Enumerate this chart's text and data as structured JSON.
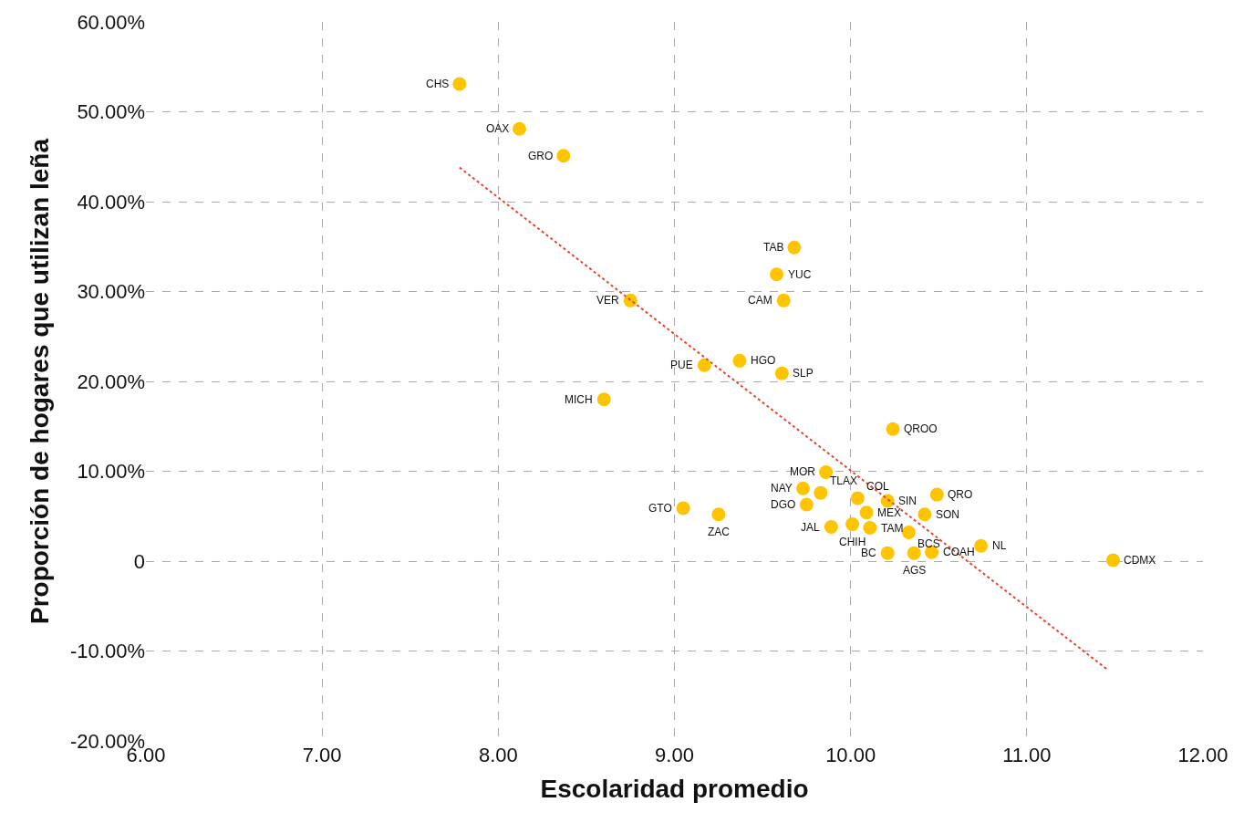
{
  "chart_data": {
    "type": "scatter",
    "xlabel": "Escolaridad promedio",
    "ylabel": "Proporción de hogares que utilizan leña",
    "series": [
      {
        "color": "#ffc400",
        "marker": "circle",
        "x": [
          7.78,
          8.12,
          8.37,
          9.68,
          9.58,
          9.62,
          8.75,
          9.17,
          9.37,
          9.61,
          8.6,
          10.24,
          9.05,
          9.25,
          9.86,
          9.73,
          9.83,
          9.75,
          10.04,
          10.21,
          10.49,
          10.09,
          10.42,
          9.89,
          10.01,
          10.11,
          10.33,
          10.21,
          10.36,
          10.46,
          10.74,
          11.49
        ],
        "values": [
          53.1,
          48.1,
          45.1,
          34.9,
          31.9,
          29.0,
          29.0,
          21.8,
          22.3,
          20.9,
          18.0,
          14.7,
          5.9,
          5.2,
          9.9,
          8.1,
          7.6,
          6.3,
          7.0,
          6.7,
          7.4,
          5.4,
          5.2,
          3.8,
          4.1,
          3.7,
          3.2,
          0.9,
          0.9,
          1.0,
          1.7,
          0.1
        ]
      },
      {
        "type": "line",
        "color": "#e8412c",
        "line_style": "dotted",
        "x": [
          7.78,
          11.46
        ],
        "values": [
          43.8,
          -12.1
        ]
      }
    ],
    "annotations": [
      {
        "text": "CHS",
        "x": 7.78,
        "y": 53.1
      },
      {
        "text": "OAX",
        "x": 8.12,
        "y": 48.1
      },
      {
        "text": "GRO",
        "x": 8.37,
        "y": 45.1
      },
      {
        "text": "TAB",
        "x": 9.68,
        "y": 34.9
      },
      {
        "text": "YUC",
        "x": 9.58,
        "y": 31.9
      },
      {
        "text": "CAM",
        "x": 9.62,
        "y": 29.0
      },
      {
        "text": "VER",
        "x": 8.75,
        "y": 29.0
      },
      {
        "text": "PUE",
        "x": 9.17,
        "y": 21.8
      },
      {
        "text": "HGO",
        "x": 9.37,
        "y": 22.3
      },
      {
        "text": "SLP",
        "x": 9.61,
        "y": 20.9
      },
      {
        "text": "MICH",
        "x": 8.6,
        "y": 18.0
      },
      {
        "text": "QROO",
        "x": 10.24,
        "y": 14.7
      },
      {
        "text": "GTO",
        "x": 9.05,
        "y": 5.9
      },
      {
        "text": "ZAC",
        "x": 9.25,
        "y": 5.2
      },
      {
        "text": "MOR",
        "x": 9.86,
        "y": 9.9
      },
      {
        "text": "NAY",
        "x": 9.73,
        "y": 8.1
      },
      {
        "text": "TLAX",
        "x": 9.83,
        "y": 7.6
      },
      {
        "text": "DGO",
        "x": 9.75,
        "y": 6.3
      },
      {
        "text": "COL",
        "x": 10.04,
        "y": 7.0
      },
      {
        "text": "SIN",
        "x": 10.21,
        "y": 6.7
      },
      {
        "text": "QRO",
        "x": 10.49,
        "y": 7.4
      },
      {
        "text": "MEX",
        "x": 10.09,
        "y": 5.4
      },
      {
        "text": "SON",
        "x": 10.42,
        "y": 5.2
      },
      {
        "text": "JAL",
        "x": 9.89,
        "y": 3.8
      },
      {
        "text": "CHIH",
        "x": 10.01,
        "y": 4.1
      },
      {
        "text": "TAM",
        "x": 10.11,
        "y": 3.7
      },
      {
        "text": "BCS",
        "x": 10.33,
        "y": 3.2
      },
      {
        "text": "BC",
        "x": 10.21,
        "y": 0.9
      },
      {
        "text": "AGS",
        "x": 10.36,
        "y": 0.9
      },
      {
        "text": "COAH",
        "x": 10.46,
        "y": 1.0
      },
      {
        "text": "NL",
        "x": 10.74,
        "y": 1.7
      },
      {
        "text": "CDMX",
        "x": 11.49,
        "y": 0.1
      }
    ],
    "xlim": [
      6.0,
      12.0
    ],
    "xticks": [
      {
        "value": 6,
        "label": "6.00"
      },
      {
        "value": 7,
        "label": "7.00"
      },
      {
        "value": 8,
        "label": "8.00"
      },
      {
        "value": 9,
        "label": "9.00"
      },
      {
        "value": 10,
        "label": "10.00"
      },
      {
        "value": 11,
        "label": "11.00"
      },
      {
        "value": 12,
        "label": "12.00"
      }
    ],
    "ylim": [
      -20,
      60
    ],
    "yticks": [
      {
        "value": -20,
        "label": "-20.00%"
      },
      {
        "value": -10,
        "label": "-10.00%"
      },
      0,
      {
        "value": 10,
        "label": "10.00%"
      },
      {
        "value": 20,
        "label": "20.00%"
      },
      {
        "value": 30,
        "label": "30.00%"
      },
      {
        "value": 40,
        "label": "40.00%"
      },
      {
        "value": 50,
        "label": "50.00%"
      },
      {
        "value": 60,
        "label": "60.00%"
      }
    ],
    "grid": true
  }
}
